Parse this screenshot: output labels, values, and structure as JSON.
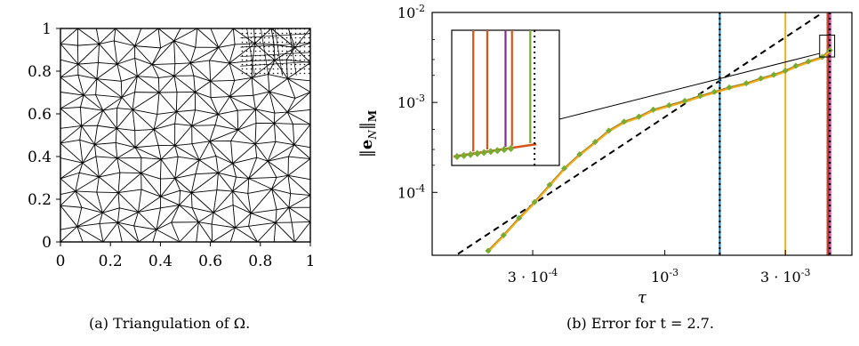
{
  "captions": {
    "a": "(a) Triangulation of Ω.",
    "b": "(b) Error for t = 2.7."
  },
  "chart_data": [
    {
      "type": "scatter",
      "subtype": "triangular mesh",
      "xlim": [
        0,
        1
      ],
      "ylim": [
        0,
        1
      ],
      "x_ticks": [
        "0",
        "0.2",
        "0.4",
        "0.6",
        "0.8",
        "1"
      ],
      "y_ticks": [
        "0",
        "0.2",
        "0.4",
        "0.6",
        "0.8",
        "1"
      ],
      "xlabel": "",
      "ylabel": "",
      "grid": false,
      "mesh_resolution": 13,
      "dotted_region": {
        "x": [
          0.72,
          1.0
        ],
        "y": [
          0.78,
          1.0
        ]
      }
    },
    {
      "type": "line",
      "x_scale": "log",
      "y_scale": "log",
      "xlim": [
        0.00012,
        0.0055
      ],
      "ylim": [
        2e-05,
        0.01
      ],
      "xlabel": "τ",
      "ylabel": "‖e_N‖_M",
      "x_ticks": [
        {
          "value": 0.0003,
          "label": "3 · 10^-4"
        },
        {
          "value": 0.001,
          "label": "10^-3"
        },
        {
          "value": 0.003,
          "label": "3 · 10^-3"
        }
      ],
      "y_ticks": [
        {
          "value": 0.0001,
          "label": "10^-4"
        },
        {
          "value": 0.001,
          "label": "10^-3"
        },
        {
          "value": 0.01,
          "label": "10^-2"
        }
      ],
      "reference_line": {
        "style": "dashed",
        "x": [
          0.00014,
          0.0042
        ],
        "y": [
          1.78e-05,
          0.0099
        ]
      },
      "error_curve": {
        "x": [
          0.0002,
          0.00023,
          0.000265,
          0.000305,
          0.00035,
          0.0004,
          0.00046,
          0.00053,
          0.0006,
          0.00069,
          0.00079,
          0.0009,
          0.00104,
          0.0012,
          0.00138,
          0.00157,
          0.0018,
          0.0021,
          0.0024,
          0.0027,
          0.003,
          0.0033,
          0.0037,
          0.0042,
          0.0045
        ],
        "y": [
          2.25e-05,
          3.35e-05,
          5.19e-05,
          7.8e-05,
          0.000121,
          0.000185,
          0.000265,
          0.000363,
          0.000486,
          0.000611,
          0.000695,
          0.000831,
          0.00093,
          0.00104,
          0.00118,
          0.00131,
          0.00147,
          0.00163,
          0.00185,
          0.00203,
          0.00225,
          0.00255,
          0.00285,
          0.0032,
          0.0038
        ]
      },
      "series_colors": [
        "#77ac30",
        "#d95319",
        "#edb120"
      ],
      "vertical_lines": [
        {
          "x": 0.00165,
          "color": "#0072bd"
        },
        {
          "x": 0.003,
          "color": "#edb120"
        },
        {
          "x": 0.0044,
          "color": "#d95319"
        },
        {
          "x": 0.00445,
          "color": "#7e2f8e"
        },
        {
          "x": 0.00452,
          "color": "#e75480"
        }
      ],
      "dotted_lines": [
        0.00165,
        0.0045
      ],
      "inset": {
        "zoom_x": [
          0.0041,
          0.0047
        ],
        "zoom_y": [
          0.0032,
          0.0056
        ],
        "vertical_lines": [
          {
            "pos": 0.2,
            "color": "#d95319"
          },
          {
            "pos": 0.33,
            "color": "#d95319"
          },
          {
            "pos": 0.5,
            "color": "#7e2f8e"
          },
          {
            "pos": 0.56,
            "color": "#d95319"
          },
          {
            "pos": 0.73,
            "color": "#77ac30"
          }
        ],
        "dotted_pos": 0.77
      }
    }
  ]
}
